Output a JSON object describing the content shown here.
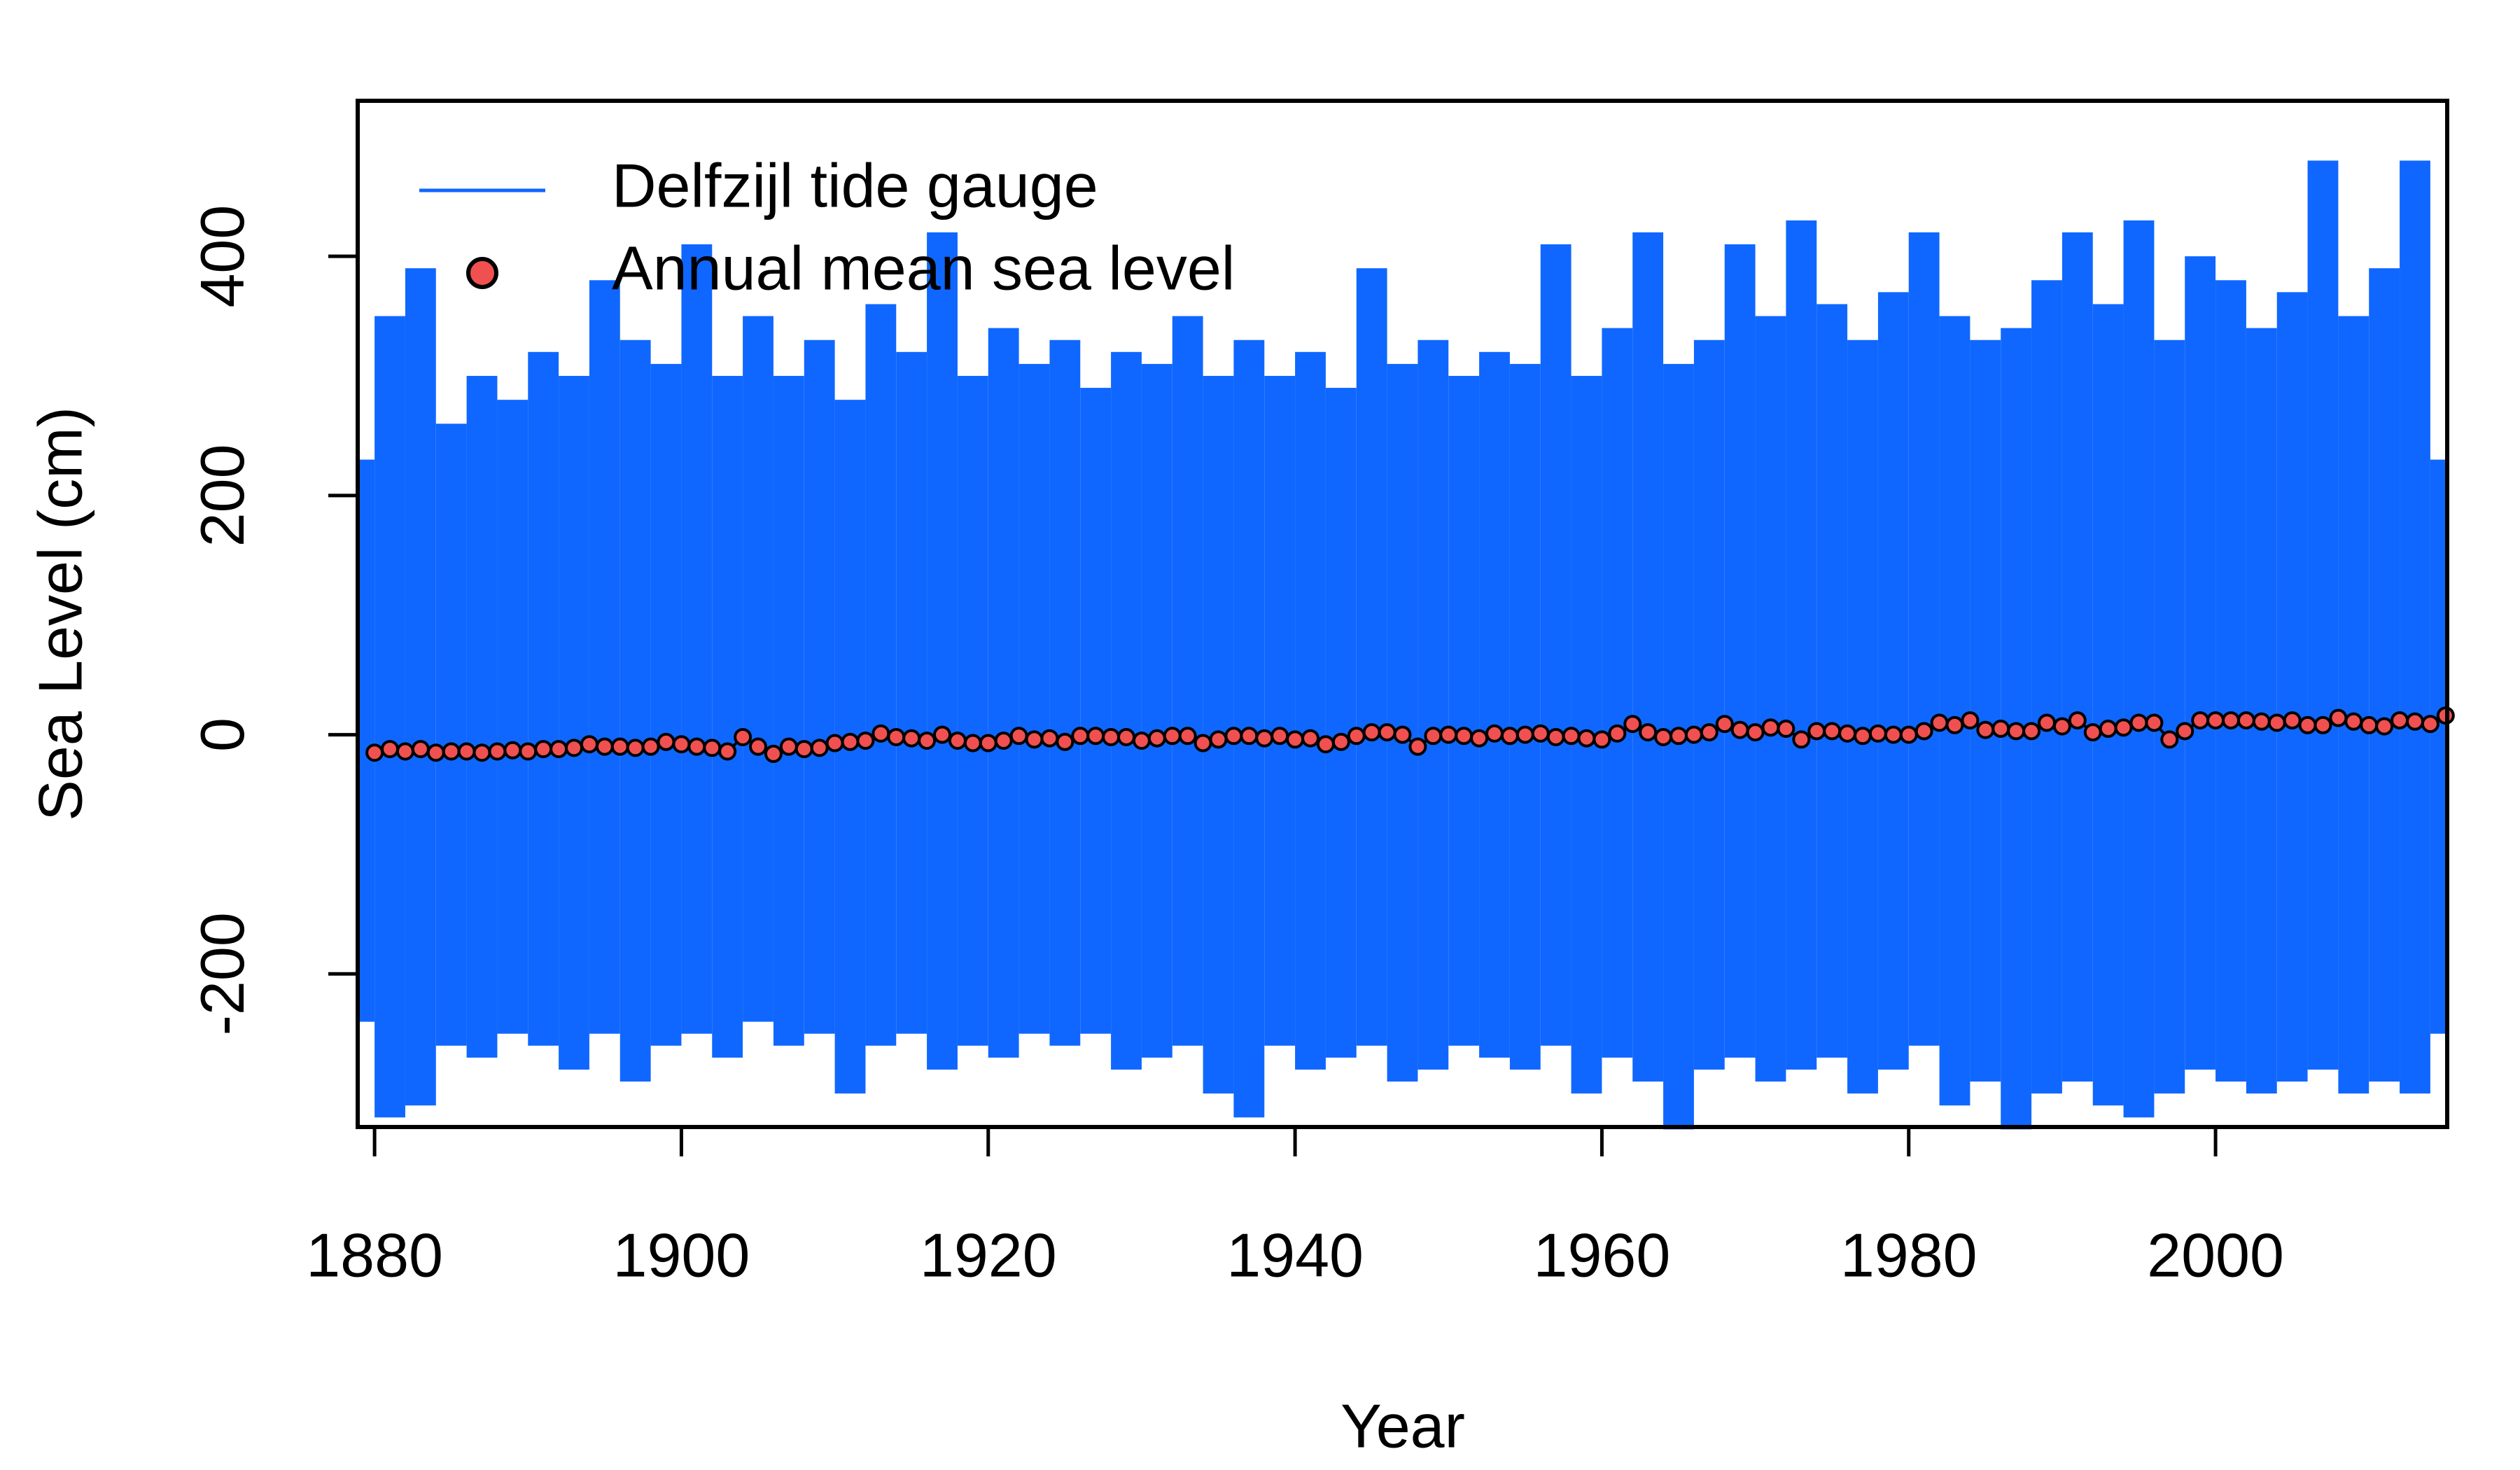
{
  "chart_data": {
    "type": "line",
    "xlabel": "Year",
    "ylabel": "Sea Level (cm)",
    "xlim": [
      1878.9,
      2015.1
    ],
    "ylim": [
      -328,
      530
    ],
    "xticks": [
      1880,
      1900,
      1920,
      1940,
      1960,
      1980,
      2000
    ],
    "yticks": [
      -200,
      0,
      200,
      400
    ],
    "legend": "top-left",
    "series": [
      {
        "name": "Delfzijl tide gauge",
        "color": "#0f67ff",
        "x": [
          1879,
          1881,
          1883,
          1885,
          1887,
          1889,
          1891,
          1893,
          1895,
          1897,
          1899,
          1901,
          1903,
          1905,
          1907,
          1909,
          1911,
          1913,
          1915,
          1917,
          1919,
          1921,
          1923,
          1925,
          1927,
          1929,
          1931,
          1933,
          1935,
          1937,
          1939,
          1941,
          1943,
          1945,
          1947,
          1949,
          1951,
          1953,
          1955,
          1957,
          1959,
          1961,
          1963,
          1965,
          1967,
          1969,
          1971,
          1973,
          1975,
          1977,
          1979,
          1981,
          1983,
          1985,
          1987,
          1989,
          1991,
          1993,
          1995,
          1997,
          1999,
          2001,
          2003,
          2005,
          2007,
          2009,
          2011,
          2013,
          2015
        ],
        "high": [
          230,
          350,
          390,
          260,
          300,
          280,
          320,
          300,
          380,
          330,
          310,
          410,
          300,
          350,
          300,
          330,
          280,
          360,
          320,
          420,
          300,
          340,
          310,
          330,
          290,
          320,
          310,
          350,
          300,
          330,
          300,
          320,
          290,
          390,
          310,
          330,
          300,
          320,
          310,
          410,
          300,
          340,
          420,
          310,
          330,
          410,
          350,
          430,
          360,
          330,
          370,
          420,
          350,
          330,
          340,
          380,
          420,
          360,
          430,
          330,
          400,
          380,
          340,
          370,
          480,
          350,
          390,
          480,
          230
        ],
        "low": [
          -240,
          -320,
          -310,
          -260,
          -270,
          -250,
          -260,
          -280,
          -250,
          -290,
          -260,
          -250,
          -270,
          -240,
          -260,
          -250,
          -300,
          -260,
          -250,
          -280,
          -260,
          -270,
          -250,
          -260,
          -250,
          -280,
          -270,
          -260,
          -300,
          -320,
          -260,
          -280,
          -270,
          -260,
          -290,
          -280,
          -260,
          -270,
          -280,
          -260,
          -300,
          -270,
          -290,
          -330,
          -280,
          -270,
          -290,
          -280,
          -270,
          -300,
          -280,
          -260,
          -310,
          -290,
          -330,
          -300,
          -290,
          -310,
          -320,
          -300,
          -280,
          -290,
          -300,
          -290,
          -280,
          -300,
          -290,
          -300,
          -250
        ]
      },
      {
        "name": "Annual mean sea level",
        "color": "#f05050",
        "x": [
          1880,
          1881,
          1882,
          1883,
          1884,
          1885,
          1886,
          1887,
          1888,
          1889,
          1890,
          1891,
          1892,
          1893,
          1894,
          1895,
          1896,
          1897,
          1898,
          1899,
          1900,
          1901,
          1902,
          1903,
          1904,
          1905,
          1906,
          1907,
          1908,
          1909,
          1910,
          1911,
          1912,
          1913,
          1914,
          1915,
          1916,
          1917,
          1918,
          1919,
          1920,
          1921,
          1922,
          1923,
          1924,
          1925,
          1926,
          1927,
          1928,
          1929,
          1930,
          1931,
          1932,
          1933,
          1934,
          1935,
          1936,
          1937,
          1938,
          1939,
          1940,
          1941,
          1942,
          1943,
          1944,
          1945,
          1946,
          1947,
          1948,
          1949,
          1950,
          1951,
          1952,
          1953,
          1954,
          1955,
          1956,
          1957,
          1958,
          1959,
          1960,
          1961,
          1962,
          1963,
          1964,
          1965,
          1966,
          1967,
          1968,
          1969,
          1970,
          1971,
          1972,
          1973,
          1974,
          1975,
          1976,
          1977,
          1978,
          1979,
          1980,
          1981,
          1982,
          1983,
          1984,
          1985,
          1986,
          1987,
          1988,
          1989,
          1990,
          1991,
          1992,
          1993,
          1994,
          1995,
          1996,
          1997,
          1998,
          1999,
          2000,
          2001,
          2002,
          2003,
          2004,
          2005,
          2006,
          2007,
          2008,
          2009,
          2010,
          2011,
          2012,
          2013,
          2014,
          2015
        ],
        "values": [
          -15,
          -12,
          -14,
          -12,
          -15,
          -14,
          -14,
          -15,
          -14,
          -13,
          -14,
          -12,
          -12,
          -11,
          -8,
          -10,
          -10,
          -11,
          -10,
          -6,
          -8,
          -10,
          -11,
          -14,
          -2,
          -10,
          -16,
          -10,
          -12,
          -11,
          -7,
          -6,
          -5,
          1,
          -2,
          -3,
          -5,
          0,
          -5,
          -7,
          -7,
          -5,
          -1,
          -4,
          -3,
          -6,
          -1,
          -1,
          -2,
          -2,
          -5,
          -3,
          -1,
          -1,
          -7,
          -4,
          -1,
          -1,
          -3,
          -1,
          -4,
          -3,
          -8,
          -6,
          -1,
          2,
          2,
          0,
          -10,
          -1,
          0,
          -1,
          -3,
          1,
          -1,
          0,
          1,
          -2,
          -1,
          -3,
          -4,
          1,
          9,
          2,
          -2,
          -1,
          0,
          2,
          9,
          4,
          2,
          6,
          5,
          -4,
          3,
          3,
          1,
          -1,
          1,
          0,
          0,
          3,
          10,
          8,
          12,
          4,
          5,
          3,
          3,
          10,
          7,
          12,
          2,
          5,
          6,
          10,
          10,
          -4,
          3,
          12,
          12,
          12,
          12,
          11,
          10,
          12,
          8,
          8,
          14,
          11,
          8,
          7,
          12,
          11,
          9,
          16
        ]
      }
    ]
  }
}
